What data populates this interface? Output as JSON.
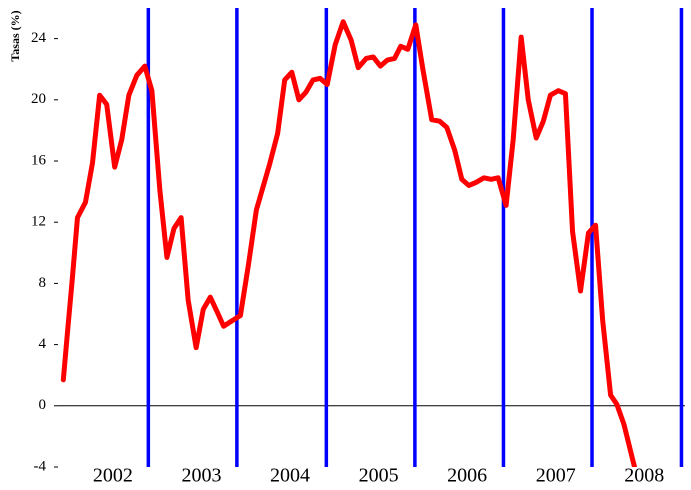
{
  "chart_data": {
    "type": "line",
    "y_label": "Tasas (%)",
    "x": [
      2001.44,
      2001.49,
      2001.54,
      2001.6,
      2001.69,
      2001.77,
      2001.85,
      2001.93,
      2002.02,
      2002.1,
      2002.18,
      2002.27,
      2002.36,
      2002.44,
      2002.53,
      2002.61,
      2002.69,
      2002.77,
      2002.85,
      2002.94,
      2003.02,
      2003.1,
      2003.18,
      2003.25,
      2003.33,
      2003.44,
      2003.53,
      2003.62,
      2003.69,
      2003.77,
      2003.86,
      2003.94,
      2004.02,
      2004.1,
      2004.18,
      2004.26,
      2004.34,
      2004.42,
      2004.51,
      2004.6,
      2004.69,
      2004.77,
      2004.86,
      2004.94,
      2005.02,
      2005.1,
      2005.18,
      2005.25,
      2005.33,
      2005.42,
      2005.5,
      2005.6,
      2005.69,
      2005.77,
      2005.86,
      2005.94,
      2006.02,
      2006.1,
      2006.19,
      2006.27,
      2006.35,
      2006.44,
      2006.52,
      2006.61,
      2006.69,
      2006.78,
      2006.86,
      2006.94,
      2007.03,
      2007.11,
      2007.19,
      2007.28,
      2007.37,
      2007.45,
      2007.53,
      2007.62,
      2007.69,
      2007.77,
      2007.89
    ],
    "series": [
      {
        "color": "#ff0000",
        "values": [
          1.7,
          5,
          8.2,
          12.3,
          13.3,
          15.9,
          20.3,
          19.7,
          15.6,
          17.4,
          20.3,
          21.6,
          22.2,
          20.6,
          14.1,
          9.7,
          11.6,
          12.3,
          6.9,
          3.8,
          6.3,
          7.1,
          6.1,
          5.2,
          5.5,
          5.9,
          9.2,
          12.8,
          14.2,
          15.8,
          17.8,
          21.3,
          21.8,
          20,
          20.5,
          21.3,
          21.4,
          21,
          23.6,
          25.1,
          23.9,
          22.1,
          22.7,
          22.8,
          22.2,
          22.6,
          22.7,
          23.5,
          23.3,
          24.9,
          22,
          18.7,
          18.6,
          18.2,
          16.7,
          14.8,
          14.4,
          14.6,
          14.9,
          14.8,
          14.9,
          13.1,
          17.4,
          24.1,
          20,
          17.5,
          18.6,
          20.3,
          20.6,
          20.4,
          11.4,
          7.5,
          11.3,
          11.8,
          5.6,
          0.7,
          0.1,
          -1.2,
          -4
        ]
      }
    ],
    "xlim": [
      2001.38,
      2008.46
    ],
    "xticks": [
      2002,
      2003,
      2004,
      2005,
      2006,
      2007,
      2008
    ],
    "ylim": [
      -4,
      26
    ],
    "yticks": [
      -4,
      0,
      4,
      8,
      12,
      16,
      20,
      24
    ],
    "vlines": [
      2002.4,
      2003.4,
      2004.41,
      2005.41,
      2006.41,
      2007.41,
      2008.42
    ],
    "vline_color": "#0000ff",
    "zero_line": true
  }
}
